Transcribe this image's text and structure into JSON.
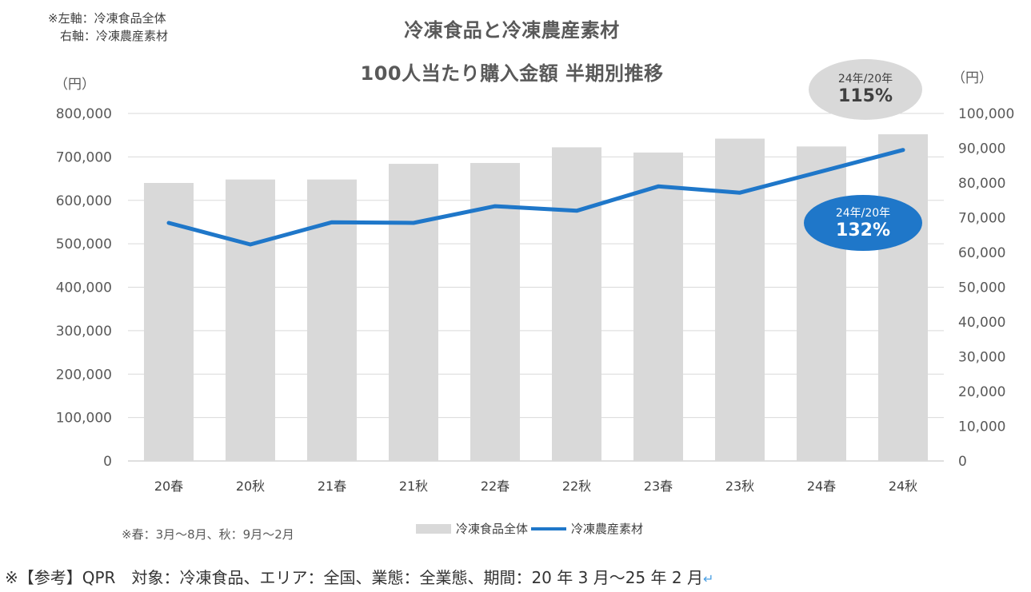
{
  "axis_note": {
    "line1": "※左軸：冷凍食品全体",
    "line2": "　右軸：冷凍農産素材"
  },
  "chart_data": {
    "type": "bar",
    "title": "冷凍食品と冷凍農産素材",
    "subtitle": "100人当たり購入金額 半期別推移",
    "categories": [
      "20春",
      "20秋",
      "21春",
      "21秋",
      "22春",
      "22秋",
      "23春",
      "23秋",
      "24春",
      "24秋"
    ],
    "series": [
      {
        "name": "冷凍食品全体",
        "type": "bar",
        "axis": "left",
        "color": "#d9d9d9",
        "values": [
          640000,
          648000,
          648000,
          684000,
          686000,
          722000,
          710000,
          742000,
          724000,
          752000
        ]
      },
      {
        "name": "冷凍農産素材",
        "type": "line",
        "axis": "right",
        "color": "#1f77c9",
        "values": [
          68500,
          62300,
          68700,
          68500,
          73300,
          72000,
          79000,
          77200,
          83300,
          89500
        ]
      }
    ],
    "left_axis": {
      "unit": "（円）",
      "ylim": [
        0,
        800000
      ],
      "ticks": [
        "0",
        "100,000",
        "200,000",
        "300,000",
        "400,000",
        "500,000",
        "600,000",
        "700,000",
        "800,000"
      ]
    },
    "right_axis": {
      "unit": "（円）",
      "ylim": [
        0,
        100000
      ],
      "ticks": [
        "0",
        "10,000",
        "20,000",
        "30,000",
        "40,000",
        "50,000",
        "60,000",
        "70,000",
        "80,000",
        "90,000",
        "100,000"
      ]
    },
    "grid": true,
    "legend": "bottom"
  },
  "annotations": {
    "gray": {
      "label": "24年/20年",
      "value": "115%"
    },
    "blue": {
      "label": "24年/20年",
      "value": "132%"
    }
  },
  "legend": {
    "bar_label": "冷凍食品全体",
    "line_label": "冷凍農産素材"
  },
  "season_note": "※春：3月～8月、秋：9月～2月",
  "footer_note": "※【参考】QPR　対象：冷凍食品、エリア：全国、業態：全業態、期間：20 年 3 月～25 年 2 月",
  "footer_return_mark": "↵"
}
